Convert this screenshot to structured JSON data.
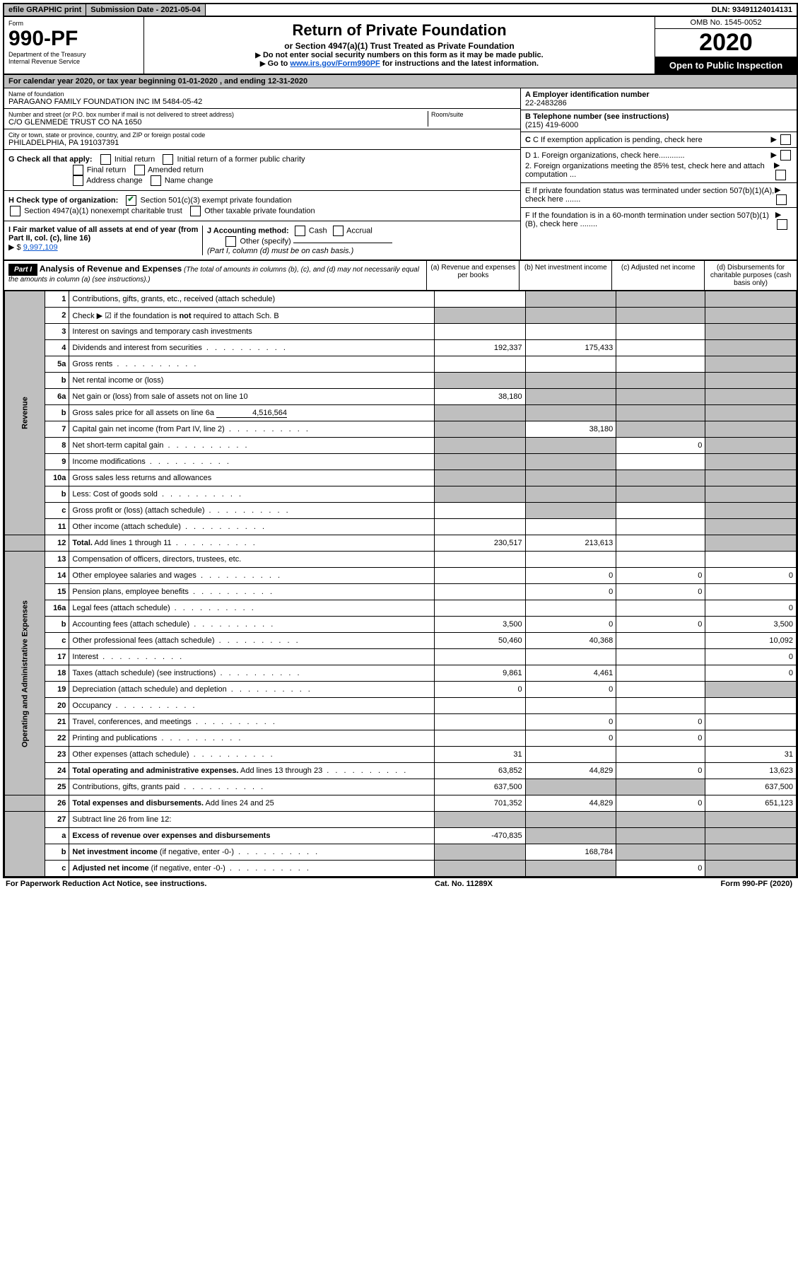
{
  "topbar": {
    "efile": "efile GRAPHIC print",
    "subdate_label": "Submission Date - ",
    "subdate": "2021-05-04",
    "dln_label": "DLN: ",
    "dln": "93491124014131"
  },
  "header": {
    "form_label": "Form",
    "form_no": "990-PF",
    "dept1": "Department of the Treasury",
    "dept2": "Internal Revenue Service",
    "title": "Return of Private Foundation",
    "subtitle": "or Section 4947(a)(1) Trust Treated as Private Foundation",
    "note1": "Do not enter social security numbers on this form as it may be made public.",
    "note2_pre": "Go to ",
    "note2_link": "www.irs.gov/Form990PF",
    "note2_post": " for instructions and the latest information.",
    "omb": "OMB No. 1545-0052",
    "year": "2020",
    "open": "Open to Public Inspection"
  },
  "calendar": {
    "pre": "For calendar year 2020, or tax year beginning ",
    "begin": "01-01-2020",
    "mid": " , and ending ",
    "end": "12-31-2020"
  },
  "id": {
    "name_label": "Name of foundation",
    "name": "PARAGANO FAMILY FOUNDATION INC IM 5484-05-42",
    "addr_label": "Number and street (or P.O. box number if mail is not delivered to street address)",
    "addr": "C/O GLENMEDE TRUST CO NA 1650",
    "room_label": "Room/suite",
    "city_label": "City or town, state or province, country, and ZIP or foreign postal code",
    "city": "PHILADELPHIA, PA  191037391",
    "A_label": "A Employer identification number",
    "A": "22-2483286",
    "B_label": "B Telephone number (see instructions)",
    "B": "(215) 419-6000",
    "C": "C If exemption application is pending, check here",
    "D1": "D 1. Foreign organizations, check here............",
    "D2": "2. Foreign organizations meeting the 85% test, check here and attach computation ...",
    "E": "E  If private foundation status was terminated under section 507(b)(1)(A), check here .......",
    "F": "F  If the foundation is in a 60-month termination under section 507(b)(1)(B), check here ........"
  },
  "G": {
    "label": "G Check all that apply:",
    "o1": "Initial return",
    "o2": "Initial return of a former public charity",
    "o3": "Final return",
    "o4": "Amended return",
    "o5": "Address change",
    "o6": "Name change"
  },
  "H": {
    "label": "H Check type of organization:",
    "o1": "Section 501(c)(3) exempt private foundation",
    "o2": "Section 4947(a)(1) nonexempt charitable trust",
    "o3": "Other taxable private foundation"
  },
  "I": {
    "label": "I Fair market value of all assets at end of year (from Part II, col. (c), line 16)",
    "arrow": "▶ $",
    "val": "9,997,109"
  },
  "J": {
    "label": "J Accounting method:",
    "o1": "Cash",
    "o2": "Accrual",
    "o3": "Other (specify)",
    "note": "(Part I, column (d) must be on cash basis.)"
  },
  "part1": {
    "tag": "Part I",
    "title": "Analysis of Revenue and Expenses",
    "sub": " (The total of amounts in columns (b), (c), and (d) may not necessarily equal the amounts in column (a) (see instructions).)",
    "col_a": "(a)   Revenue and expenses per books",
    "col_b": "(b)  Net investment income",
    "col_c": "(c)  Adjusted net income",
    "col_d": "(d)  Disbursements for charitable purposes (cash basis only)"
  },
  "sideRevenue": "Revenue",
  "sideExpenses": "Operating and Administrative Expenses",
  "lines": {
    "l1": {
      "n": "1",
      "d": "Contributions, gifts, grants, etc., received (attach schedule)"
    },
    "l2": {
      "n": "2",
      "d": "Check ▶ ☑ if the foundation is <b>not</b> required to attach Sch. B"
    },
    "l3": {
      "n": "3",
      "d": "Interest on savings and temporary cash investments"
    },
    "l4": {
      "n": "4",
      "d": "Dividends and interest from securities",
      "a": "192,337",
      "b": "175,433"
    },
    "l5a": {
      "n": "5a",
      "d": "Gross rents"
    },
    "l5b": {
      "n": "b",
      "d": "Net rental income or (loss)"
    },
    "l6a": {
      "n": "6a",
      "d": "Net gain or (loss) from sale of assets not on line 10",
      "a": "38,180"
    },
    "l6b": {
      "n": "b",
      "d": "Gross sales price for all assets on line 6a",
      "inline": "4,516,564"
    },
    "l7": {
      "n": "7",
      "d": "Capital gain net income (from Part IV, line 2)",
      "b": "38,180"
    },
    "l8": {
      "n": "8",
      "d": "Net short-term capital gain",
      "c": "0"
    },
    "l9": {
      "n": "9",
      "d": "Income modifications"
    },
    "l10a": {
      "n": "10a",
      "d": "Gross sales less returns and allowances"
    },
    "l10b": {
      "n": "b",
      "d": "Less: Cost of goods sold"
    },
    "l10c": {
      "n": "c",
      "d": "Gross profit or (loss) (attach schedule)"
    },
    "l11": {
      "n": "11",
      "d": "Other income (attach schedule)"
    },
    "l12": {
      "n": "12",
      "d": "<b>Total.</b> Add lines 1 through 11",
      "a": "230,517",
      "b": "213,613"
    },
    "l13": {
      "n": "13",
      "d": "Compensation of officers, directors, trustees, etc."
    },
    "l14": {
      "n": "14",
      "d": "Other employee salaries and wages",
      "b": "0",
      "c": "0",
      "dv": "0"
    },
    "l15": {
      "n": "15",
      "d": "Pension plans, employee benefits",
      "b": "0",
      "c": "0"
    },
    "l16a": {
      "n": "16a",
      "d": "Legal fees (attach schedule)",
      "dv": "0"
    },
    "l16b": {
      "n": "b",
      "d": "Accounting fees (attach schedule)",
      "a": "3,500",
      "b": "0",
      "c": "0",
      "dv": "3,500"
    },
    "l16c": {
      "n": "c",
      "d": "Other professional fees (attach schedule)",
      "a": "50,460",
      "b": "40,368",
      "dv": "10,092"
    },
    "l17": {
      "n": "17",
      "d": "Interest",
      "dv": "0"
    },
    "l18": {
      "n": "18",
      "d": "Taxes (attach schedule) (see instructions)",
      "a": "9,861",
      "b": "4,461",
      "dv": "0"
    },
    "l19": {
      "n": "19",
      "d": "Depreciation (attach schedule) and depletion",
      "a": "0",
      "b": "0"
    },
    "l20": {
      "n": "20",
      "d": "Occupancy"
    },
    "l21": {
      "n": "21",
      "d": "Travel, conferences, and meetings",
      "b": "0",
      "c": "0"
    },
    "l22": {
      "n": "22",
      "d": "Printing and publications",
      "b": "0",
      "c": "0"
    },
    "l23": {
      "n": "23",
      "d": "Other expenses (attach schedule)",
      "a": "31",
      "dv": "31"
    },
    "l24": {
      "n": "24",
      "d": "<b>Total operating and administrative expenses.</b> Add lines 13 through 23",
      "a": "63,852",
      "b": "44,829",
      "c": "0",
      "dv": "13,623"
    },
    "l25": {
      "n": "25",
      "d": "Contributions, gifts, grants paid",
      "a": "637,500",
      "dv": "637,500"
    },
    "l26": {
      "n": "26",
      "d": "<b>Total expenses and disbursements.</b> Add lines 24 and 25",
      "a": "701,352",
      "b": "44,829",
      "c": "0",
      "dv": "651,123"
    },
    "l27": {
      "n": "27",
      "d": "Subtract line 26 from line 12:"
    },
    "l27a": {
      "n": "a",
      "d": "<b>Excess of revenue over expenses and disbursements</b>",
      "a": "-470,835"
    },
    "l27b": {
      "n": "b",
      "d": "<b>Net investment income</b> (if negative, enter -0-)",
      "b": "168,784"
    },
    "l27c": {
      "n": "c",
      "d": "<b>Adjusted net income</b> (if negative, enter -0-)",
      "c": "0"
    }
  },
  "footer": {
    "left": "For Paperwork Reduction Act Notice, see instructions.",
    "mid": "Cat. No. 11289X",
    "right": "Form 990-PF (2020)"
  }
}
